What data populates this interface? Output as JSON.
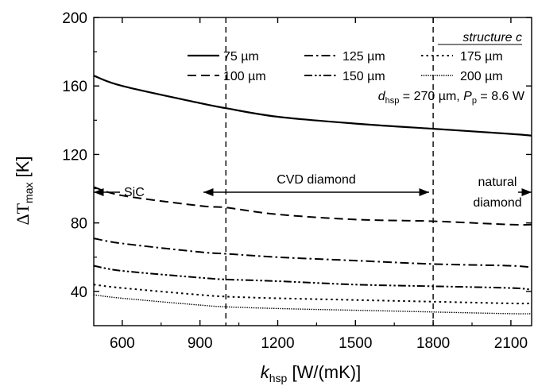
{
  "chart_data": {
    "type": "line",
    "xlabel": {
      "main": "k",
      "sub": "hsp",
      "rest": " [W/(mK)]"
    },
    "ylabel": {
      "main": "ΔT",
      "sub": "max",
      "rest": " [K]"
    },
    "xlim": [
      490,
      2180
    ],
    "ylim": [
      20,
      200
    ],
    "xticks": [
      600,
      900,
      1200,
      1500,
      1800,
      2100
    ],
    "yticks": [
      40,
      80,
      120,
      160,
      200
    ],
    "grid": false,
    "legend_position": "top-right",
    "legend_title": "structure c",
    "params": {
      "d_main": "d",
      "d_sub": "hsp",
      "d_val": " = 270 µm, ",
      "p_main": "P",
      "p_sub": "p",
      "p_val": " = 8.6 W"
    },
    "series": [
      {
        "name": "75 µm",
        "dash": "solid",
        "x": [
          490,
          600,
          900,
          1000,
          1200,
          1500,
          1800,
          2100,
          2180
        ],
        "y": [
          166,
          160,
          150,
          147,
          142,
          138,
          135,
          132,
          131
        ]
      },
      {
        "name": "100 µm",
        "dash": "dashed",
        "x": [
          490,
          600,
          900,
          1000,
          1200,
          1500,
          1800,
          2100,
          2180
        ],
        "y": [
          101,
          96,
          90,
          89,
          85,
          82,
          81,
          79,
          79
        ]
      },
      {
        "name": "125 µm",
        "dash": "dashdot",
        "x": [
          490,
          600,
          900,
          1000,
          1200,
          1500,
          1800,
          2100,
          2180
        ],
        "y": [
          71,
          68,
          63,
          62,
          60,
          58,
          56,
          55,
          54
        ]
      },
      {
        "name": "150 µm",
        "dash": "dashdotdot",
        "x": [
          490,
          600,
          900,
          1000,
          1200,
          1500,
          1800,
          2100,
          2180
        ],
        "y": [
          55,
          52,
          48,
          47,
          46,
          44,
          43,
          42,
          41
        ]
      },
      {
        "name": "175 µm",
        "dash": "dotted",
        "x": [
          490,
          600,
          900,
          1000,
          1200,
          1500,
          1800,
          2100,
          2180
        ],
        "y": [
          44,
          42,
          38,
          37,
          36,
          35,
          34,
          33,
          33
        ]
      },
      {
        "name": "200 µm",
        "dash": "fine",
        "x": [
          490,
          600,
          900,
          1000,
          1200,
          1500,
          1800,
          2100,
          2180
        ],
        "y": [
          38,
          36,
          32,
          31,
          30,
          29,
          28,
          27,
          27
        ]
      }
    ],
    "vlines": [
      1000,
      1800
    ],
    "regions": [
      {
        "label": "SiC",
        "from": 490,
        "to": 1000
      },
      {
        "label": "CVD diamond",
        "from": 1000,
        "to": 1800
      },
      {
        "label_lines": [
          "natural",
          "diamond"
        ],
        "from": 1800,
        "to": 2180
      }
    ]
  }
}
